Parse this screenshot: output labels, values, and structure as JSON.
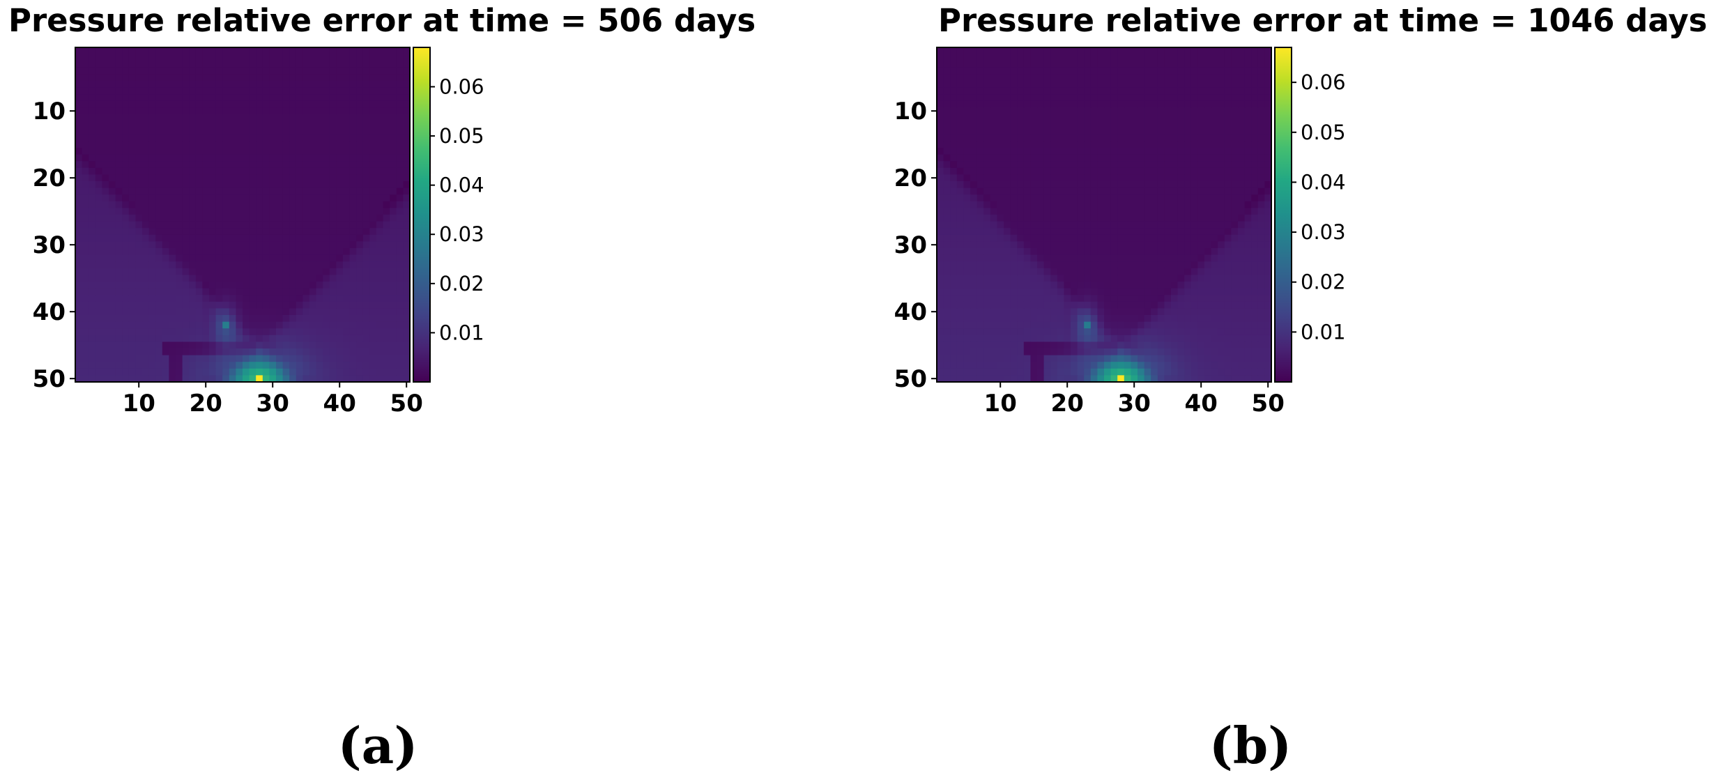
{
  "chart_data": [
    {
      "type": "heatmap",
      "title": "Pressure relative error at time = 506 days",
      "caption": "(a)",
      "colormap": "viridis",
      "grid_size": [
        50,
        50
      ],
      "x_ticks": [
        10,
        20,
        30,
        40,
        50
      ],
      "y_ticks": [
        10,
        20,
        30,
        40,
        50
      ],
      "colorbar": {
        "min": 0.0,
        "max": 0.068,
        "ticks": [
          0.01,
          0.02,
          0.03,
          0.04,
          0.05,
          0.06
        ],
        "tick_labels": [
          "0.01",
          "0.02",
          "0.03",
          "0.04",
          "0.05",
          "0.06"
        ]
      },
      "peak_value": 0.068,
      "hotspots": [
        {
          "x": 28,
          "y": 50,
          "value": 0.068
        },
        {
          "x": 23,
          "y": 42,
          "value": 0.029
        }
      ],
      "xlabel": "",
      "ylabel": ""
    },
    {
      "type": "heatmap",
      "title": "Pressure relative error at time = 1046 days",
      "caption": "(b)",
      "colormap": "viridis",
      "grid_size": [
        50,
        50
      ],
      "x_ticks": [
        10,
        20,
        30,
        40,
        50
      ],
      "y_ticks": [
        10,
        20,
        30,
        40,
        50
      ],
      "colorbar": {
        "min": 0.0,
        "max": 0.067,
        "ticks": [
          0.01,
          0.02,
          0.03,
          0.04,
          0.05,
          0.06
        ],
        "tick_labels": [
          "0.01",
          "0.02",
          "0.03",
          "0.04",
          "0.05",
          "0.06"
        ]
      },
      "peak_value": 0.067,
      "hotspots": [
        {
          "x": 28,
          "y": 50,
          "value": 0.067
        },
        {
          "x": 23,
          "y": 42,
          "value": 0.028
        }
      ],
      "xlabel": "",
      "ylabel": ""
    }
  ]
}
